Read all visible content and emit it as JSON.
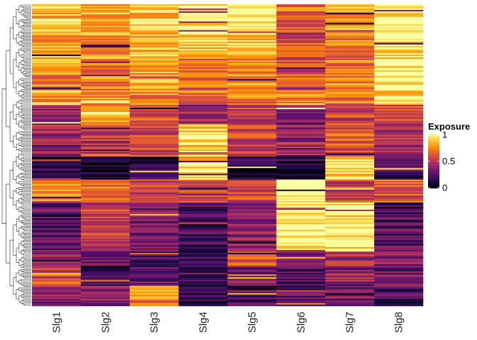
{
  "chart_data": {
    "type": "heatmap",
    "columns": [
      "Slg1",
      "Slg2",
      "Slg3",
      "Slg4",
      "Slg5",
      "Slg6",
      "Slg7",
      "Slg8"
    ],
    "row_count": 210,
    "dendrogram": "left",
    "colorscale": "inferno",
    "value_range": [
      0,
      1
    ],
    "legend": {
      "title": "Exposure",
      "ticks": [
        {
          "value": 1,
          "label": "1"
        },
        {
          "value": 0.5,
          "label": "0.5"
        },
        {
          "value": 0,
          "label": "0"
        }
      ],
      "placement": "right"
    },
    "blocks": [
      {
        "rows": 22,
        "values": [
          0.85,
          0.82,
          0.88,
          0.98,
          0.95,
          0.65,
          0.8,
          1.0
        ]
      },
      {
        "rows": 16,
        "values": [
          0.8,
          0.78,
          0.8,
          0.9,
          0.88,
          0.55,
          0.72,
          0.95
        ]
      },
      {
        "rows": 22,
        "values": [
          0.75,
          0.7,
          0.78,
          0.65,
          0.75,
          0.62,
          0.72,
          0.98
        ]
      },
      {
        "rows": 10,
        "values": [
          0.82,
          0.78,
          0.72,
          0.7,
          0.68,
          0.75,
          0.7,
          0.95
        ]
      },
      {
        "rows": 14,
        "values": [
          0.45,
          0.85,
          0.6,
          0.4,
          0.55,
          0.35,
          0.55,
          0.55
        ]
      },
      {
        "rows": 22,
        "values": [
          0.45,
          0.55,
          0.55,
          0.9,
          0.55,
          0.4,
          0.6,
          0.45
        ]
      },
      {
        "rows": 16,
        "values": [
          0.1,
          0.1,
          0.15,
          0.95,
          0.1,
          0.15,
          0.95,
          0.2
        ]
      },
      {
        "rows": 16,
        "values": [
          0.72,
          0.65,
          0.55,
          0.55,
          0.55,
          1.0,
          0.55,
          0.6
        ]
      },
      {
        "rows": 34,
        "values": [
          0.25,
          0.55,
          0.35,
          0.2,
          0.4,
          1.0,
          0.95,
          0.25
        ]
      },
      {
        "rows": 10,
        "values": [
          0.4,
          0.3,
          0.25,
          0.2,
          0.6,
          0.3,
          0.45,
          0.35
        ]
      },
      {
        "rows": 14,
        "values": [
          0.6,
          0.15,
          0.3,
          0.2,
          0.35,
          0.2,
          0.4,
          0.3
        ]
      },
      {
        "rows": 14,
        "values": [
          0.35,
          0.4,
          0.75,
          0.15,
          0.2,
          0.25,
          0.3,
          0.2
        ]
      }
    ]
  }
}
